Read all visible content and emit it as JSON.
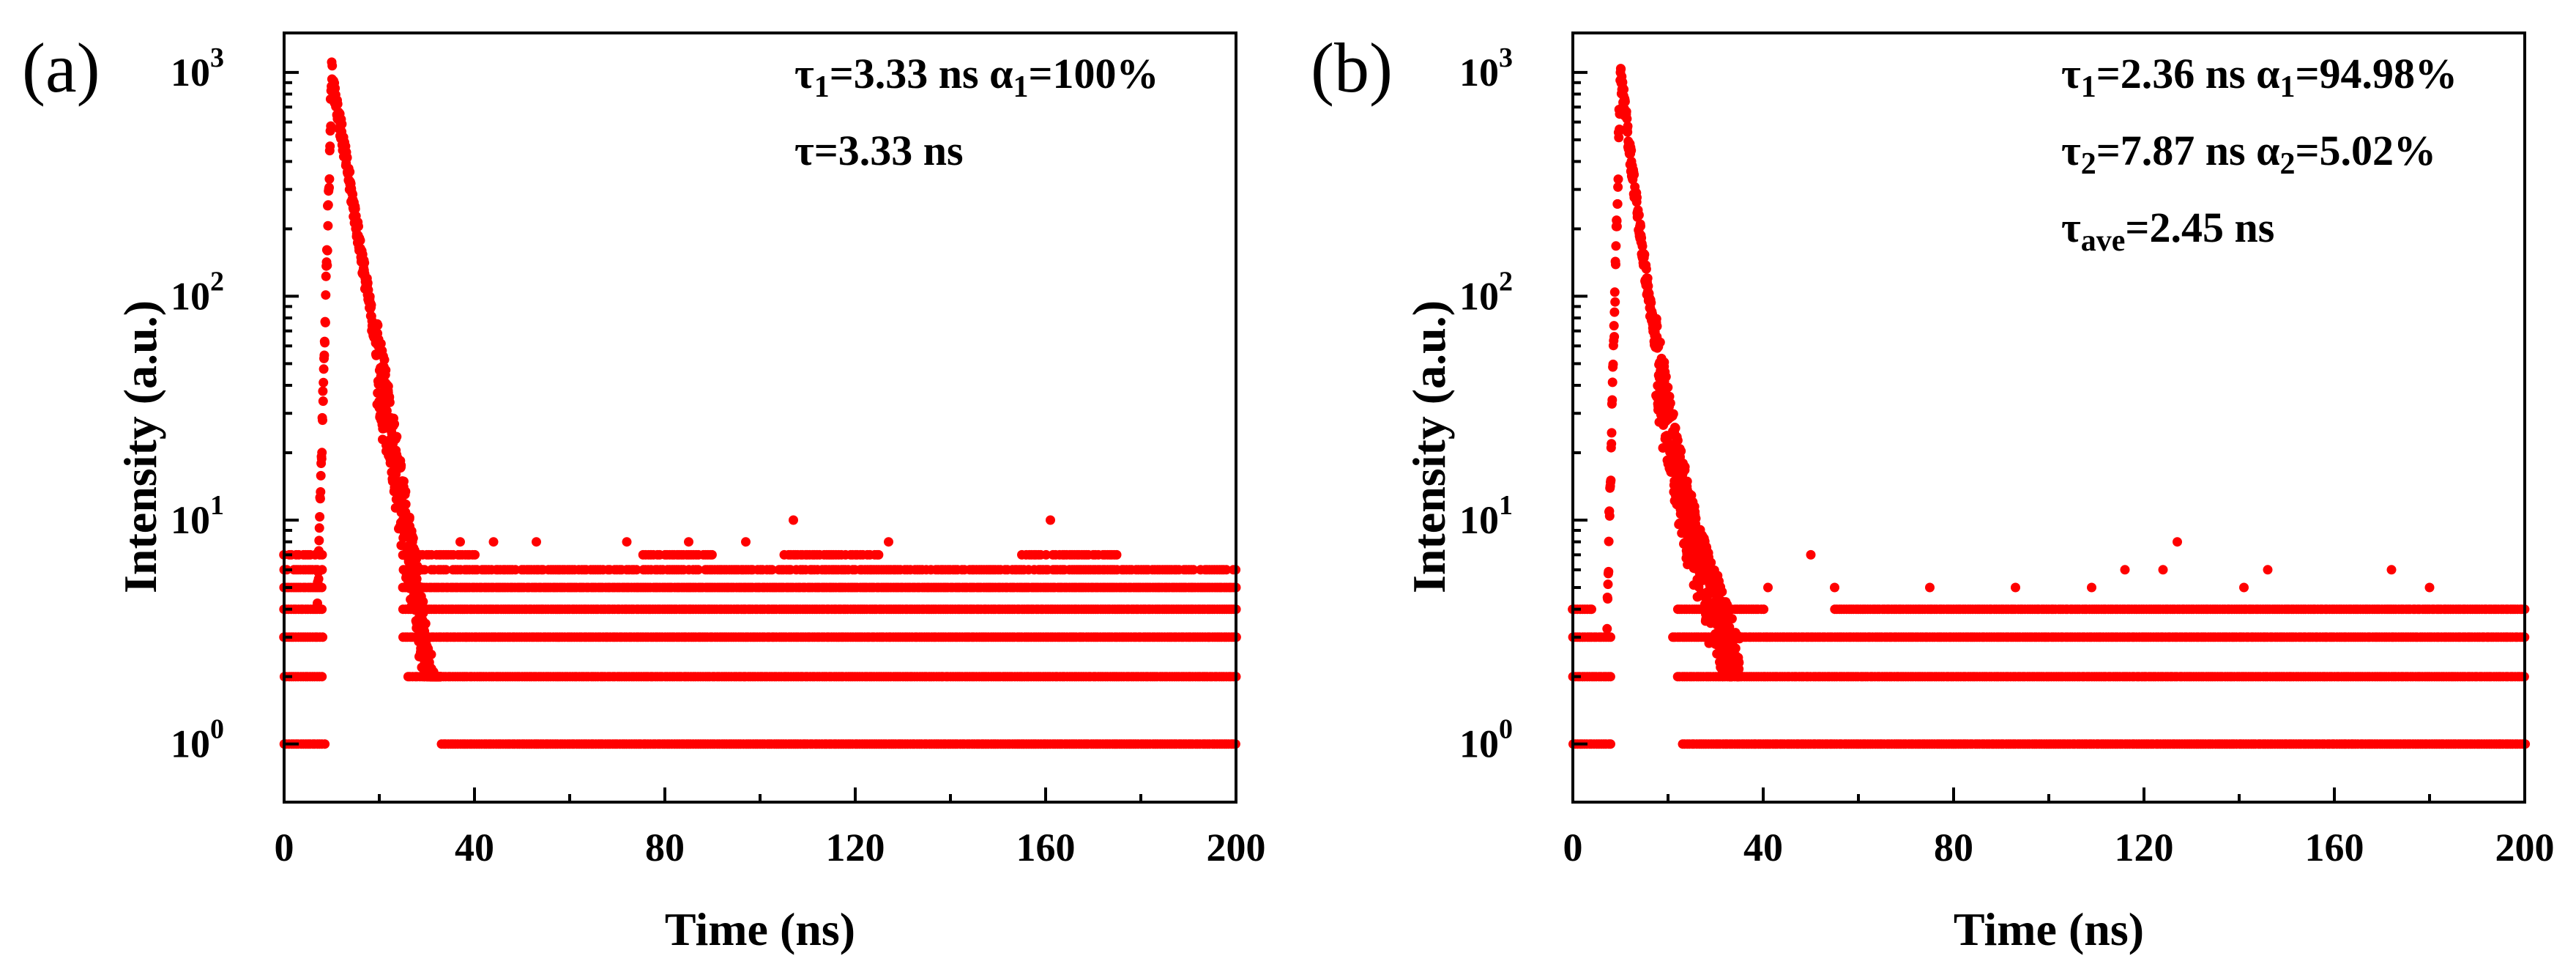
{
  "chart_data": [
    {
      "panel_label": "(a)",
      "type": "scatter",
      "xlabel": "Time (ns)",
      "ylabel": "Intensity (a.u.)",
      "xlim": [
        0,
        200
      ],
      "ylim": [
        0.55,
        1500
      ],
      "yscale": "log",
      "x_ticks": [
        "0",
        "40",
        "80",
        "120",
        "160",
        "200"
      ],
      "y_ticks": [
        {
          "base": "10",
          "exp": "0"
        },
        {
          "base": "10",
          "exp": "1"
        },
        {
          "base": "10",
          "exp": "2"
        },
        {
          "base": "10",
          "exp": "3"
        }
      ],
      "marker_color": "#ff0000",
      "annotations": [
        [
          {
            "t": "τ"
          },
          {
            "t": "1",
            "sub": true
          },
          {
            "t": "=3.33 ns α"
          },
          {
            "t": "1",
            "sub": true
          },
          {
            "t": "=100%"
          }
        ],
        [
          {
            "t": "τ=3.33 ns"
          }
        ]
      ],
      "decay": {
        "peak_time": 10,
        "peak_counts": 1000,
        "rise_start": 7,
        "lifetimes": [
          3.33
        ],
        "amplitudes": [
          1.0
        ],
        "tail_end": 40,
        "noise_scatter_until": 30
      },
      "baseline_bands": [
        {
          "counts": 1,
          "x": [
            [
              0,
              8.5
            ],
            [
              33,
              200
            ]
          ]
        },
        {
          "counts": 2,
          "x": [
            [
              0,
              8
            ],
            [
              26,
              200
            ]
          ]
        },
        {
          "counts": 3,
          "x": [
            [
              0,
              8
            ],
            [
              25,
              200
            ]
          ]
        },
        {
          "counts": 4,
          "x": [
            [
              0,
              8
            ],
            [
              25,
              200
            ]
          ]
        },
        {
          "counts": 5,
          "x": [
            [
              0,
              8
            ],
            [
              25,
              200
            ]
          ]
        },
        {
          "counts": 6,
          "x": [
            [
              0,
              8
            ],
            [
              25,
              200
            ]
          ]
        },
        {
          "counts": 7,
          "x": [
            [
              0,
              8
            ],
            [
              26,
              40
            ],
            [
              75,
              90
            ],
            [
              105,
              125
            ],
            [
              155,
              175
            ]
          ]
        }
      ],
      "outliers": [
        [
          37,
          8
        ],
        [
          44,
          8
        ],
        [
          53,
          8
        ],
        [
          72,
          8
        ],
        [
          85,
          8
        ],
        [
          97,
          8
        ],
        [
          107,
          10
        ],
        [
          127,
          8
        ],
        [
          161,
          10
        ]
      ]
    },
    {
      "panel_label": "(b)",
      "type": "scatter",
      "xlabel": "Time (ns)",
      "ylabel": "Intensity (a.u.)",
      "xlim": [
        0,
        200
      ],
      "ylim": [
        0.55,
        1500
      ],
      "yscale": "log",
      "x_ticks": [
        "0",
        "40",
        "80",
        "120",
        "160",
        "200"
      ],
      "y_ticks": [
        {
          "base": "10",
          "exp": "0"
        },
        {
          "base": "10",
          "exp": "1"
        },
        {
          "base": "10",
          "exp": "2"
        },
        {
          "base": "10",
          "exp": "3"
        }
      ],
      "marker_color": "#ff0000",
      "annotations": [
        [
          {
            "t": "τ"
          },
          {
            "t": "1",
            "sub": true
          },
          {
            "t": "=2.36 ns α"
          },
          {
            "t": "1",
            "sub": true
          },
          {
            "t": "=94.98%"
          }
        ],
        [
          {
            "t": "τ"
          },
          {
            "t": "2",
            "sub": true
          },
          {
            "t": "=7.87 ns α"
          },
          {
            "t": "2",
            "sub": true
          },
          {
            "t": "=5.02%"
          }
        ],
        [
          {
            "t": "τ"
          },
          {
            "t": "ave",
            "sub": true
          },
          {
            "t": "=2.45 ns"
          }
        ]
      ],
      "decay": {
        "peak_time": 10,
        "peak_counts": 1000,
        "rise_start": 7.2,
        "lifetimes": [
          2.36,
          7.87
        ],
        "amplitudes": [
          0.9498,
          0.0502
        ],
        "tail_end": 35,
        "noise_scatter_until": 32
      },
      "baseline_bands": [
        {
          "counts": 1,
          "x": [
            [
              0,
              8
            ],
            [
              23,
              200
            ]
          ]
        },
        {
          "counts": 2,
          "x": [
            [
              0,
              8
            ],
            [
              22,
              200
            ]
          ]
        },
        {
          "counts": 3,
          "x": [
            [
              0,
              8
            ],
            [
              21,
              200
            ]
          ]
        },
        {
          "counts": 4,
          "x": [
            [
              0,
              4
            ],
            [
              22,
              40
            ],
            [
              55,
              200
            ]
          ]
        }
      ],
      "outliers": [
        [
          50,
          7
        ],
        [
          41,
          5
        ],
        [
          55,
          5
        ],
        [
          75,
          5
        ],
        [
          93,
          5
        ],
        [
          109,
          5
        ],
        [
          116,
          6
        ],
        [
          124,
          6
        ],
        [
          127,
          8
        ],
        [
          141,
          5
        ],
        [
          146,
          6
        ],
        [
          172,
          6
        ],
        [
          180,
          5
        ]
      ]
    }
  ]
}
